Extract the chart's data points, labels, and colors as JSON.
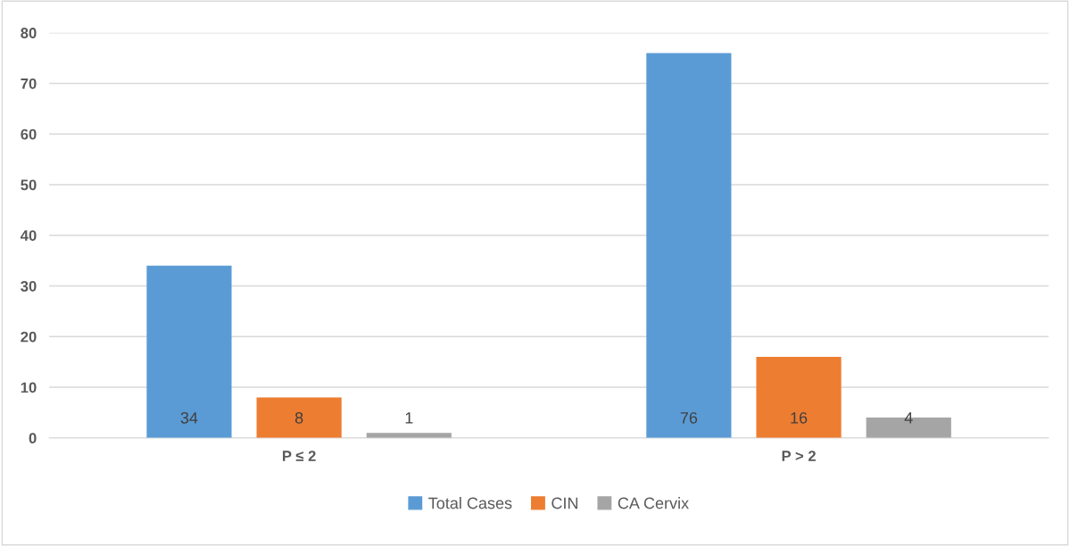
{
  "chart_data": {
    "type": "bar",
    "categories": [
      "P ≤ 2",
      "P > 2"
    ],
    "series": [
      {
        "name": "Total Cases",
        "color": "#5b9bd5",
        "values": [
          34,
          76
        ]
      },
      {
        "name": "CIN",
        "color": "#ed7d31",
        "values": [
          8,
          16
        ]
      },
      {
        "name": "CA Cervix",
        "color": "#a5a5a5",
        "values": [
          1,
          4
        ]
      }
    ],
    "ylim": [
      0,
      80
    ],
    "yticks": [
      0,
      10,
      20,
      30,
      40,
      50,
      60,
      70,
      80
    ],
    "grid": "y",
    "legend": "bottom",
    "data_labels": true
  }
}
